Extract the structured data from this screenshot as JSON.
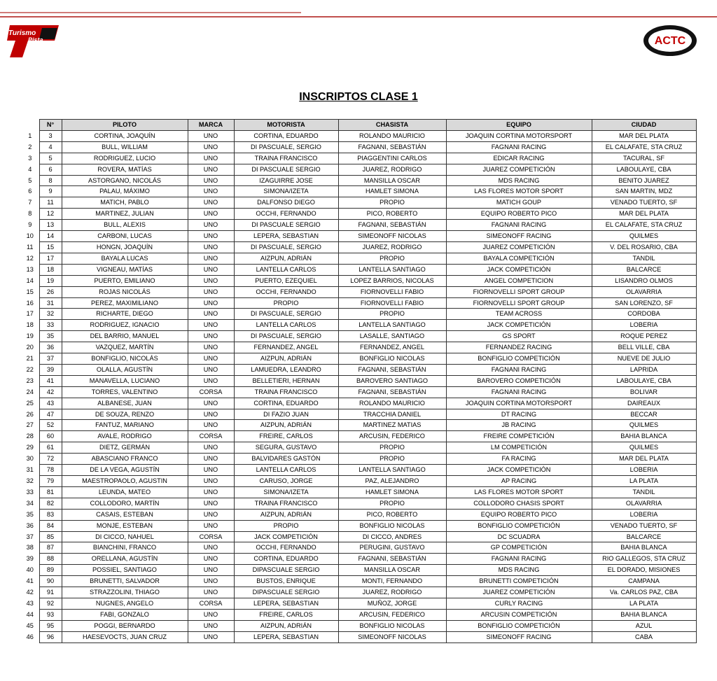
{
  "logos": {
    "left": [
      "Turismo",
      "Pista"
    ],
    "right": "ACTC"
  },
  "header": {
    "title": "INSCRIPTOS CLASE 1"
  },
  "table": {
    "columns": [
      "N°",
      "PILOTO",
      "MARCA",
      "MOTORISTA",
      "CHASISTA",
      "EQUIPO",
      "CIUDAD"
    ],
    "rows": [
      [
        1,
        3,
        "CORTINA, JOAQUÍN",
        "UNO",
        "CORTINA, EDUARDO",
        "ROLANDO MAURICIO",
        "JOAQUIN CORTINA MOTORSPORT",
        "MAR DEL PLATA"
      ],
      [
        2,
        4,
        "BULL, WILLIAM",
        "UNO",
        "DI PASCUALE, SERGIO",
        "FAGNANI, SEBASTIÁN",
        "FAGNANI RACING",
        "EL CALAFATE, STA CRUZ"
      ],
      [
        3,
        5,
        "RODRIGUEZ, LUCIO",
        "UNO",
        "TRAINA FRANCISCO",
        "PIAGGENTINI CARLOS",
        "EDICAR RACING",
        "TACURAL, SF"
      ],
      [
        4,
        6,
        "ROVERA, MATÍAS",
        "UNO",
        "DI PASCUALE SERGIO",
        "JUAREZ, RODRIGO",
        "JUAREZ COMPETICIÓN",
        "LABOULAYE, CBA"
      ],
      [
        5,
        8,
        "ASTORGANO, NICOLÁS",
        "UNO",
        "IZAGUIRRE JOSE",
        "MANSILLA OSCAR",
        "MDS RACING",
        "BENITO JUAREZ"
      ],
      [
        6,
        9,
        "PALAU, MÁXIMO",
        "UNO",
        "SIMONA/IZETA",
        "HAMLET SIMONA",
        "LAS FLORES MOTOR SPORT",
        "SAN MARTIN, MDZ"
      ],
      [
        7,
        11,
        "MATICH, PABLO",
        "UNO",
        "DALFONSO DIEGO",
        "PROPIO",
        "MATICH GOUP",
        "VENADO TUERTO, SF"
      ],
      [
        8,
        12,
        "MARTINEZ, JULIAN",
        "UNO",
        "OCCHI, FERNANDO",
        "PICO, ROBERTO",
        "EQUIPO ROBERTO PICO",
        "MAR DEL PLATA"
      ],
      [
        9,
        13,
        "BULL, ALEXIS",
        "UNO",
        "DI PASCUALE SERGIO",
        "FAGNANI, SEBASTIÁN",
        "FAGNANI RACING",
        "EL CALAFATE, STA CRUZ"
      ],
      [
        10,
        14,
        "CARBONI, LUCAS",
        "UNO",
        "LEPERA, SEBASTIAN",
        "SIMEONOFF NICOLAS",
        "SIMEONOFF RACING",
        "QUILMES"
      ],
      [
        11,
        15,
        "HONGN, JOAQUÍN",
        "UNO",
        "DI PASCUALE, SERGIO",
        "JUAREZ, RODRIGO",
        "JUAREZ COMPETICIÓN",
        "V. DEL ROSARIO, CBA"
      ],
      [
        12,
        17,
        "BAYALA LUCAS",
        "UNO",
        "AIZPUN, ADRIÁN",
        "PROPIO",
        "BAYALA COMPETICIÓN",
        "TANDIL"
      ],
      [
        13,
        18,
        "VIGNEAU, MATÍAS",
        "UNO",
        "LANTELLA CARLOS",
        "LANTELLA SANTIAGO",
        "JACK COMPETICIÓN",
        "BALCARCE"
      ],
      [
        14,
        19,
        "PUERTO, EMILIANO",
        "UNO",
        "PUERTO, EZEQUIEL",
        "LOPEZ BARRIOS, NICOLAS",
        "ANGEL COMPETICION",
        "LISANDRO OLMOS"
      ],
      [
        15,
        26,
        "ROJAS NICOLÁS",
        "UNO",
        "OCCHI, FERNANDO",
        "FIORNOVELLI FABIO",
        "FIORNOVELLI SPORT GROUP",
        "OLAVARRIA"
      ],
      [
        16,
        31,
        "PEREZ, MAXIMILIANO",
        "UNO",
        "PROPIO",
        "FIORNOVELLI FABIO",
        "FIORNOVELLI SPORT GROUP",
        "SAN LORENZO, SF"
      ],
      [
        17,
        32,
        "RICHARTE, DIEGO",
        "UNO",
        "DI PASCUALE, SERGIO",
        "PROPIO",
        "TEAM ACROSS",
        "CORDOBA"
      ],
      [
        18,
        33,
        "RODRIGUEZ, IGNACIO",
        "UNO",
        "LANTELLA CARLOS",
        "LANTELLA SANTIAGO",
        "JACK COMPETICIÓN",
        "LOBERIA"
      ],
      [
        19,
        35,
        "DEL BARRIO, MANUEL",
        "UNO",
        "DI PASCUALE, SERGIO",
        "LASALLE, SANTIAGO",
        "GS SPORT",
        "ROQUE PEREZ"
      ],
      [
        20,
        36,
        "VAZQUEZ, MARTÍN",
        "UNO",
        "FERNANDEZ, ANGEL",
        "FERNANDEZ, ANGEL",
        "FERNANDEZ RACING",
        "BELL VILLE, CBA"
      ],
      [
        21,
        37,
        "BONFIGLIO, NICOLÁS",
        "UNO",
        "AIZPUN, ADRIÁN",
        "BONFIGLIO NICOLAS",
        "BONFIGLIO COMPETICIÓN",
        "NUEVE DE JULIO"
      ],
      [
        22,
        39,
        "OLALLA, AGUSTÍN",
        "UNO",
        "LAMUEDRA, LEANDRO",
        "FAGNANI, SEBASTIÁN",
        "FAGNANI RACING",
        "LAPRIDA"
      ],
      [
        23,
        41,
        "MANAVELLA, LUCIANO",
        "UNO",
        "BELLETIERI, HERNAN",
        "BAROVERO SANTIAGO",
        "BAROVERO COMPETICIÓN",
        "LABOULAYE, CBA"
      ],
      [
        24,
        42,
        "TORRES, VALENTINO",
        "CORSA",
        "TRAINA FRANCISCO",
        "FAGNANI, SEBASTIÁN",
        "FAGNANI RACING",
        "BOLIVAR"
      ],
      [
        25,
        43,
        "ALBANESE, JUAN",
        "UNO",
        "CORTINA, EDUARDO",
        "ROLANDO MAURICIO",
        "JOAQUIN CORTINA MOTORSPORT",
        "DAIREAUX"
      ],
      [
        26,
        47,
        "DE SOUZA, RENZO",
        "UNO",
        "DI FAZIO JUAN",
        "TRACCHIA DANIEL",
        "DT RACING",
        "BECCAR"
      ],
      [
        27,
        52,
        "FANTUZ, MARIANO",
        "UNO",
        "AIZPUN, ADRIÁN",
        "MARTINEZ MATIAS",
        "JB RACING",
        "QUILMES"
      ],
      [
        28,
        60,
        "AVALE, RODRIGO",
        "CORSA",
        "FREIRE, CARLOS",
        "ARCUSIN, FEDERICO",
        "FREIRE COMPETICIÓN",
        "BAHIA BLANCA"
      ],
      [
        29,
        61,
        "DIETZ, GERMÁN",
        "UNO",
        "SEGURA, GUSTAVO",
        "PROPIO",
        "LM COMPETICIÓN",
        "QUILMES"
      ],
      [
        30,
        72,
        "ABASCIANO FRANCO",
        "UNO",
        "BALVIDARES GASTÓN",
        "PROPIO",
        "FA RACING",
        "MAR DEL PLATA"
      ],
      [
        31,
        78,
        "DE LA VEGA, AGUSTÍN",
        "UNO",
        "LANTELLA CARLOS",
        "LANTELLA SANTIAGO",
        "JACK COMPETICIÓN",
        "LOBERIA"
      ],
      [
        32,
        79,
        "MAESTROPAOLO, AGUSTIN",
        "UNO",
        "CARUSO, JORGE",
        "PAZ, ALEJANDRO",
        "AP RACING",
        "LA PLATA"
      ],
      [
        33,
        81,
        "LEUNDA, MATEO",
        "UNO",
        "SIMONA/IZETA",
        "HAMLET SIMONA",
        "LAS FLORES MOTOR SPORT",
        "TANDIL"
      ],
      [
        34,
        82,
        "COLLODORO, MARTÍN",
        "UNO",
        "TRAINA FRANCISCO",
        "PROPIO",
        "COLLODORO CHASIS SPORT",
        "OLAVARRIA"
      ],
      [
        35,
        83,
        "CASAIS, ESTEBAN",
        "UNO",
        "AIZPUN, ADRIÁN",
        "PICO, ROBERTO",
        "EQUIPO ROBERTO PICO",
        "LOBERIA"
      ],
      [
        36,
        84,
        "MONJE, ESTEBAN",
        "UNO",
        "PROPIO",
        "BONFIGLIO NICOLAS",
        "BONFIGLIO COMPETICIÓN",
        "VENADO TUERTO, SF"
      ],
      [
        37,
        85,
        "DI CICCO, NAHUEL",
        "CORSA",
        "JACK COMPETICIÓN",
        "DI CICCO, ANDRES",
        "DC SCUADRA",
        "BALCARCE"
      ],
      [
        38,
        87,
        "BIANCHINI, FRANCO",
        "UNO",
        "OCCHI, FERNANDO",
        "PERUGINI, GUSTAVO",
        "GP COMPETICIÓN",
        "BAHIA BLANCA"
      ],
      [
        39,
        88,
        "ORELLANA, AGUSTÍN",
        "UNO",
        "CORTINA, EDUARDO",
        "FAGNANI, SEBASTIÁN",
        "FAGNANI RACING",
        "RIO GALLEGOS, STA CRUZ"
      ],
      [
        40,
        89,
        "POSSIEL, SANTIAGO",
        "UNO",
        "DIPASCUALE SERGIO",
        "MANSILLA OSCAR",
        "MDS RACING",
        "EL DORADO, MISIONES"
      ],
      [
        41,
        90,
        "BRUNETTI, SALVADOR",
        "UNO",
        "BUSTOS, ENRIQUE",
        "MONTI, FERNANDO",
        "BRUNETTI COMPETICIÓN",
        "CAMPANA"
      ],
      [
        42,
        91,
        "STRAZZOLINI, THIAGO",
        "UNO",
        "DIPASCUALE SERGIO",
        "JUAREZ, RODRIGO",
        "JUAREZ COMPETICIÓN",
        "Va. CARLOS PAZ, CBA"
      ],
      [
        43,
        92,
        "NUGNES, ANGELO",
        "CORSA",
        "LEPERA, SEBASTIAN",
        "MUÑOZ, JORGE",
        "CURLY RACING",
        "LA PLATA"
      ],
      [
        44,
        93,
        "FABI, GONZALO",
        "UNO",
        "FREIRE, CARLOS",
        "ARCUSIN, FEDERICO",
        "ARCUSIN COMPETICIÓN",
        "BAHIA BLANCA"
      ],
      [
        45,
        95,
        "POGGI, BERNARDO",
        "UNO",
        "AIZPUN, ADRIÁN",
        "BONFIGLIO NICOLAS",
        "BONFIGLIO COMPETICIÓN",
        "AZUL"
      ],
      [
        46,
        96,
        "HAESEVOCTS, JUAN CRUZ",
        "UNO",
        "LEPERA, SEBASTIAN",
        "SIMEONOFF NICOLAS",
        "SIMEONOFF RACING",
        "CABA"
      ]
    ]
  }
}
